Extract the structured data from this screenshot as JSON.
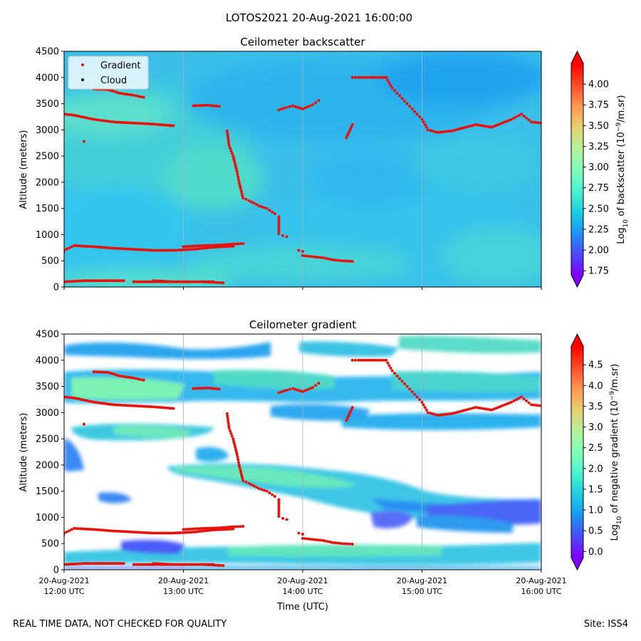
{
  "suptitle": "LOTOS2021 20-Aug-2021 16:00:00",
  "footer": {
    "left": "REAL TIME DATA, NOT CHECKED FOR QUALITY",
    "right": "Site: ISS4"
  },
  "colors": {
    "gradient_points": "#e8120c",
    "cloud_points": "#000000",
    "gridline": "#b0b0b0",
    "colormap": "rainbow"
  },
  "chart_data": [
    {
      "type": "heatmap",
      "title": "Ceilometer backscatter",
      "xlabel": "",
      "ylabel": "Altitude (meters)",
      "ylim": [
        0,
        4500
      ],
      "yticks": [
        "0",
        "500",
        "1000",
        "1500",
        "2000",
        "2500",
        "3000",
        "3500",
        "4000",
        "4500"
      ],
      "xlim_hours_utc": [
        12,
        16
      ],
      "grid": "vertical lines at hourly ticks",
      "legend": {
        "placement": "upper-left",
        "entries": [
          "Gradient",
          "Cloud"
        ]
      },
      "colorbar": {
        "label": "Log10 of backscatter (10-9/m.sr)",
        "range": [
          1.7,
          4.25
        ],
        "ticks": [
          "1.75",
          "2.00",
          "2.25",
          "2.50",
          "2.75",
          "3.00",
          "3.25",
          "3.50",
          "3.75",
          "4.00"
        ],
        "extend": "both"
      },
      "field_description_values": {
        "background_level": 2.6,
        "upper_layer_level": 2.4,
        "near_surface_level": 2.7
      },
      "series": [
        {
          "name": "Gradient",
          "marker": "dot",
          "points_time_altitude": [
            [
              "12:00",
              720
            ],
            [
              "12:05",
              720
            ],
            [
              "12:10",
              710
            ],
            [
              "12:15",
              680
            ],
            [
              "12:18",
              600
            ],
            [
              "12:22",
              400
            ],
            [
              "12:25",
              200
            ],
            [
              "12:28",
              50
            ],
            [
              "12:30",
              20
            ],
            [
              "12:40",
              20
            ],
            [
              "12:50",
              20
            ],
            [
              "12:55",
              40
            ],
            [
              "13:00",
              100
            ],
            [
              "13:10",
              120
            ],
            [
              "13:20",
              120
            ],
            [
              "13:30",
              120
            ],
            [
              "13:45",
              120
            ],
            [
              "13:55",
              100
            ],
            [
              "12:25",
              3380
            ],
            [
              "12:35",
              3360
            ],
            [
              "12:45",
              3340
            ],
            [
              "12:55",
              3320
            ],
            [
              "13:05",
              3280
            ],
            [
              "13:15",
              3200
            ],
            [
              "13:25",
              3150
            ],
            [
              "13:35",
              3130
            ],
            [
              "13:45",
              3110
            ],
            [
              "13:55",
              3080
            ],
            [
              "12:58",
              400
            ],
            [
              "13:00",
              700
            ],
            [
              "13:05",
              790
            ],
            [
              "13:15",
              770
            ],
            [
              "13:25",
              740
            ],
            [
              "13:35",
              720
            ],
            [
              "13:45",
              700
            ],
            [
              "13:55",
              700
            ],
            [
              "14:05",
              720
            ],
            [
              "14:15",
              760
            ],
            [
              "14:25",
              780
            ],
            [
              "13:10",
              2780
            ],
            [
              "13:15",
              3780
            ],
            [
              "13:22",
              3770
            ],
            [
              "13:28",
              3700
            ],
            [
              "13:35",
              3660
            ],
            [
              "13:40",
              3620
            ],
            [
              "13:35",
              100
            ],
            [
              "13:45",
              100
            ],
            [
              "13:55",
              100
            ],
            [
              "14:05",
              100
            ],
            [
              "14:15",
              100
            ],
            [
              "14:00",
              770
            ],
            [
              "14:10",
              790
            ],
            [
              "14:18",
              800
            ],
            [
              "14:25",
              820
            ],
            [
              "14:30",
              830
            ],
            [
              "14:05",
              3460
            ],
            [
              "14:12",
              3470
            ],
            [
              "14:18",
              3450
            ],
            [
              "14:10",
              100
            ],
            [
              "14:15",
              90
            ],
            [
              "14:20",
              80
            ],
            [
              "14:22",
              2980
            ],
            [
              "14:23",
              2700
            ],
            [
              "14:25",
              2500
            ],
            [
              "14:27",
              2200
            ],
            [
              "14:28",
              2000
            ],
            [
              "14:30",
              1700
            ],
            [
              "14:33",
              1650
            ],
            [
              "14:38",
              1550
            ],
            [
              "14:42",
              1500
            ],
            [
              "14:46",
              1400
            ],
            [
              "14:48",
              1340
            ],
            [
              "14:48",
              1020
            ],
            [
              "14:50",
              980
            ],
            [
              "14:52",
              960
            ],
            [
              "14:48",
              3380
            ],
            [
              "14:52",
              3430
            ],
            [
              "14:55",
              3460
            ],
            [
              "15:00",
              3400
            ],
            [
              "15:05",
              3480
            ],
            [
              "15:08",
              3560
            ],
            [
              "14:58",
              700
            ],
            [
              "15:00",
              680
            ],
            [
              "15:00",
              600
            ],
            [
              "15:05",
              580
            ],
            [
              "15:10",
              560
            ],
            [
              "15:15",
              520
            ],
            [
              "15:20",
              500
            ],
            [
              "15:25",
              490
            ],
            [
              "15:22",
              2850
            ],
            [
              "15:25",
              3100
            ],
            [
              "15:25",
              4000
            ],
            [
              "15:28",
              4000
            ],
            [
              "15:35",
              4000
            ],
            [
              "15:42",
              4000
            ],
            [
              "15:45",
              3800
            ],
            [
              "15:50",
              3600
            ],
            [
              "15:55",
              3400
            ],
            [
              "16:00",
              3200
            ],
            [
              "16:03",
              3000
            ],
            [
              "16:08",
              2950
            ],
            [
              "16:15",
              2980
            ],
            [
              "16:22",
              3050
            ],
            [
              "16:27",
              3100
            ],
            [
              "16:35",
              3050
            ],
            [
              "16:45",
              3200
            ],
            [
              "16:50",
              3300
            ],
            [
              "16:55",
              3150
            ],
            [
              "17:00",
              3130
            ]
          ]
        },
        {
          "name": "Cloud",
          "marker": "dot",
          "points_time_altitude": []
        }
      ]
    },
    {
      "type": "heatmap",
      "title": "Ceilometer gradient",
      "xlabel": "Time (UTC)",
      "ylabel": "Altitude (meters)",
      "ylim": [
        0,
        4500
      ],
      "yticks": [
        "0",
        "500",
        "1000",
        "1500",
        "2000",
        "2500",
        "3000",
        "3500",
        "4000",
        "4500"
      ],
      "xtick_labels": [
        [
          "20-Aug-2021",
          "12:00 UTC"
        ],
        [
          "20-Aug-2021",
          "13:00 UTC"
        ],
        [
          "20-Aug-2021",
          "14:00 UTC"
        ],
        [
          "20-Aug-2021",
          "15:00 UTC"
        ],
        [
          "20-Aug-2021",
          "16:00 UTC"
        ]
      ],
      "grid": "vertical lines at hourly ticks",
      "colorbar": {
        "label": "Log10 of negative gradient (10-9/m.sr)",
        "range": [
          -0.15,
          4.95
        ],
        "ticks": [
          "0.0",
          "0.5",
          "1.0",
          "1.5",
          "2.0",
          "2.5",
          "3.0",
          "3.5",
          "4.0",
          "4.5"
        ],
        "extend": "both"
      },
      "layers_time_altitude_value": [
        {
          "x": [
            12.0,
            16.0
          ],
          "y": [
            3300,
            3800
          ],
          "v": 1.8
        },
        {
          "x": [
            12.2,
            13.7
          ],
          "y": [
            2650,
            2900
          ],
          "v": 1.5
        },
        {
          "x": [
            12.9,
            16.0
          ],
          "y": [
            1600,
            2050
          ],
          "v": 1.4
        },
        {
          "x": [
            12.0,
            16.0
          ],
          "y": [
            200,
            450
          ],
          "v": 1.3
        },
        {
          "x": [
            12.0,
            16.0
          ],
          "y": [
            3850,
            4150
          ],
          "v": 1.2
        }
      ]
    }
  ]
}
